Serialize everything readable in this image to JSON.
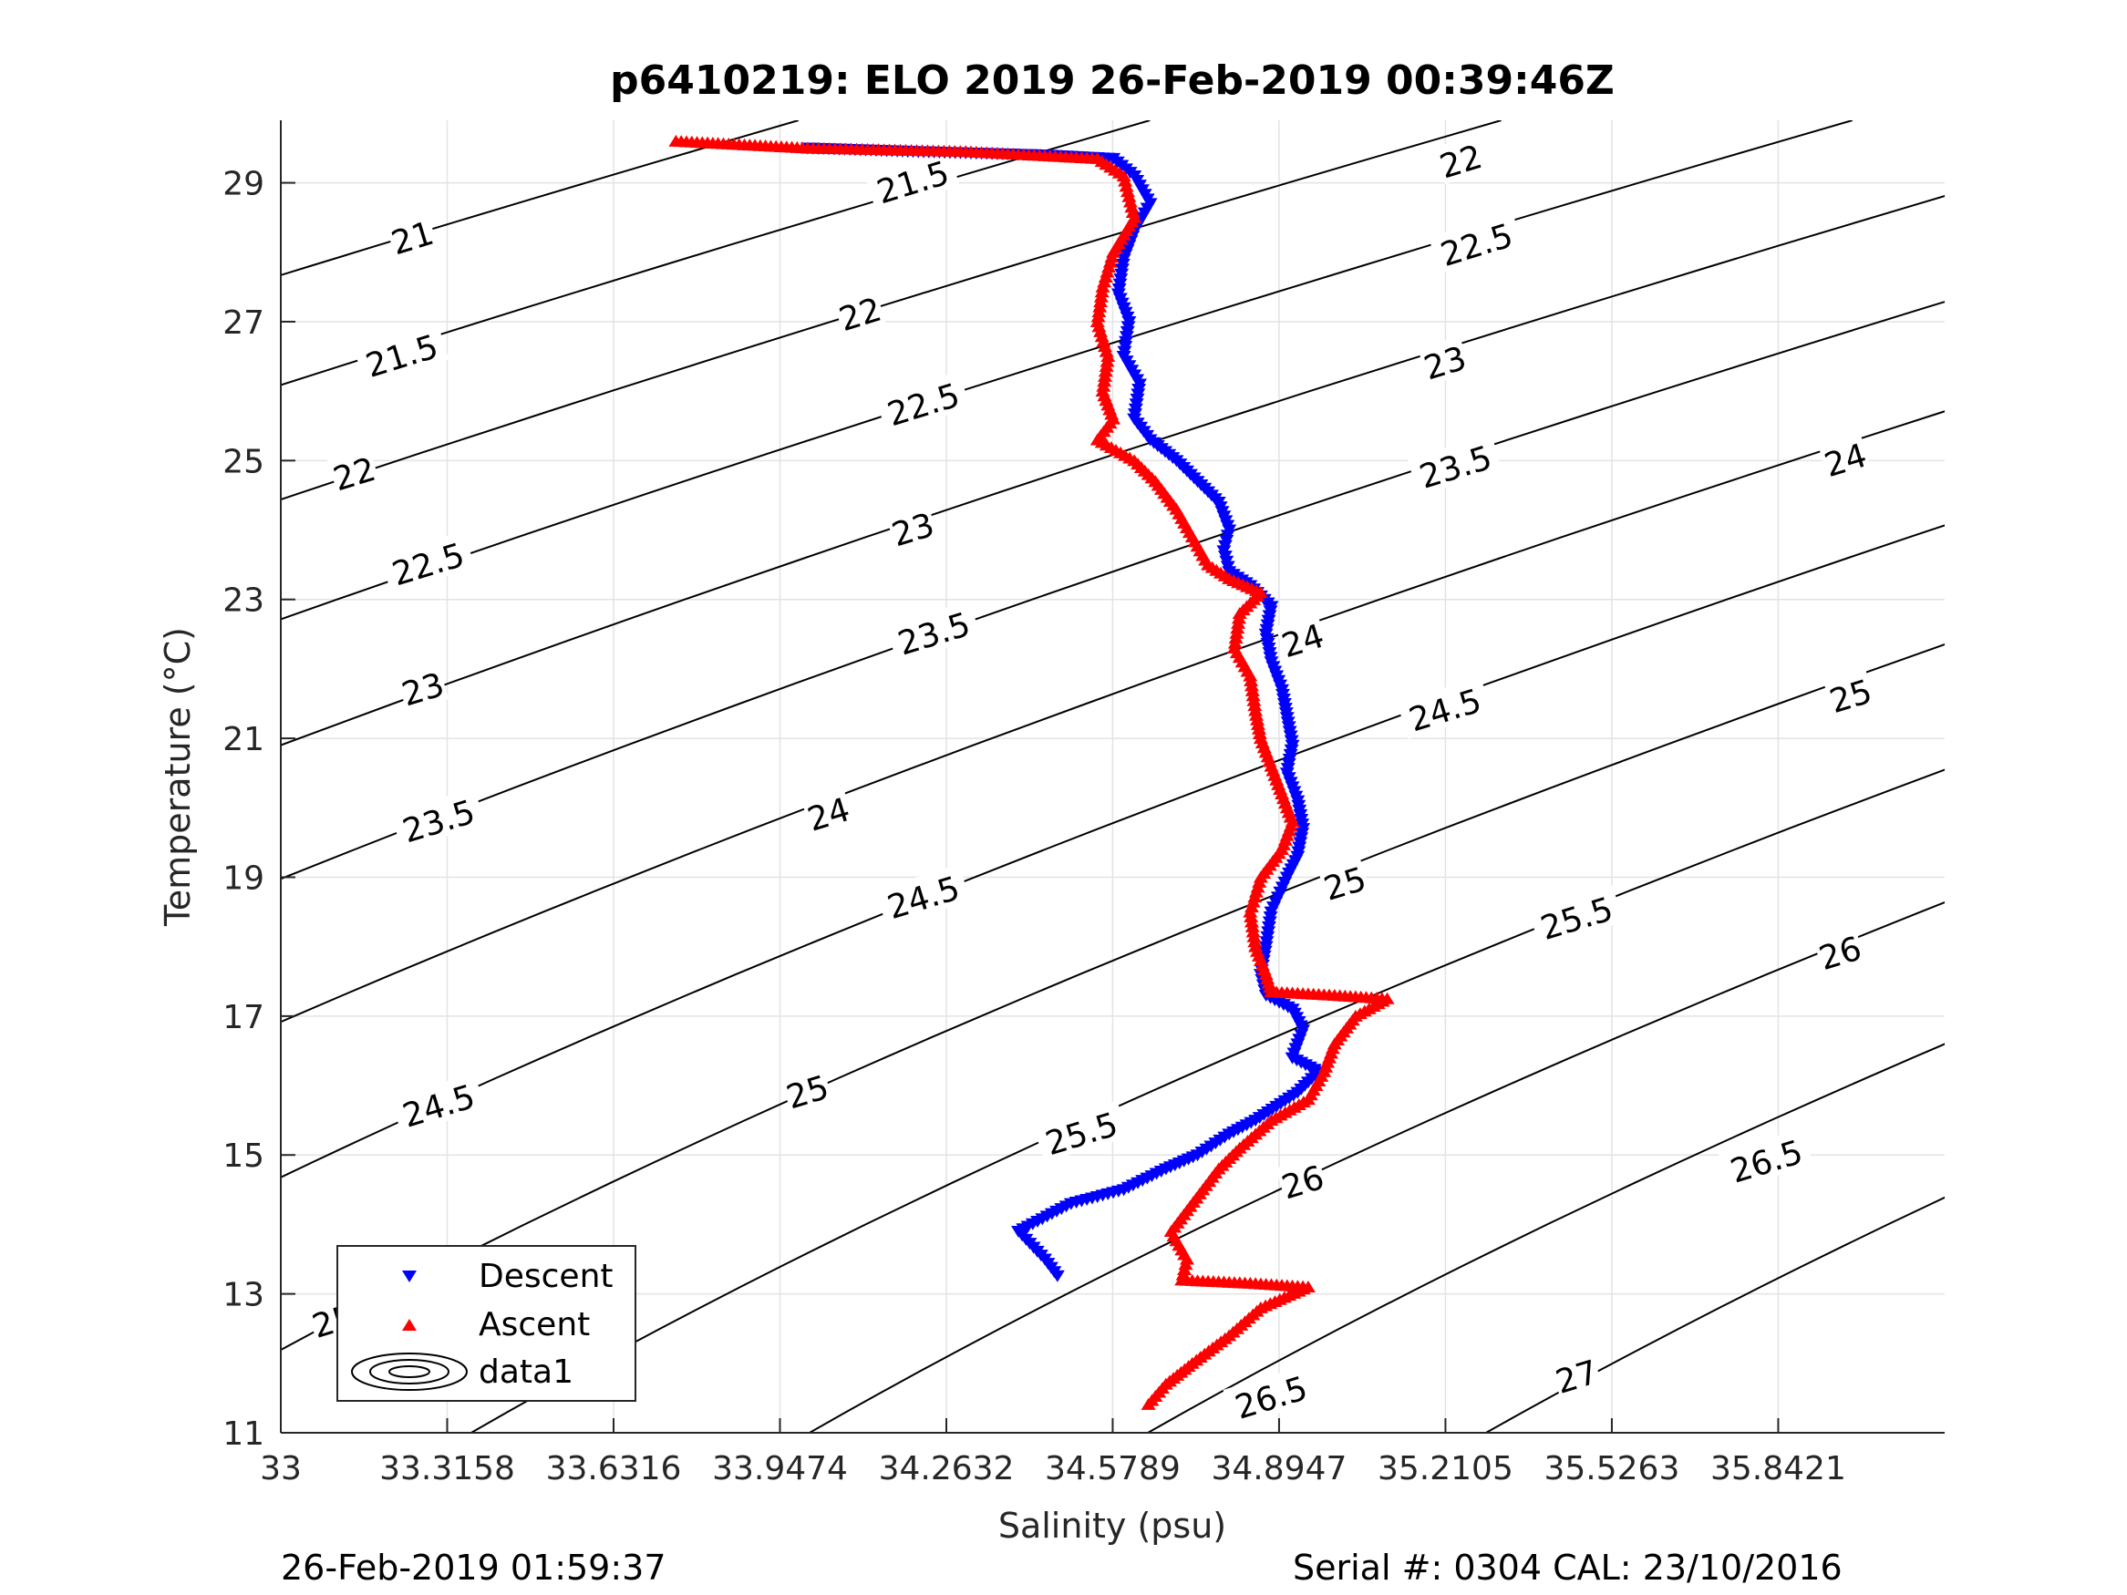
{
  "chart_data": {
    "type": "scatter",
    "title": "p6410219: ELO 2019 26-Feb-2019 00:39:46Z",
    "xlabel": "Salinity (psu)",
    "ylabel": "Temperature (°C)",
    "xlim": [
      33,
      36.158
    ],
    "ylim": [
      11,
      29.9
    ],
    "x_ticks": [
      33,
      33.3158,
      33.6316,
      33.9474,
      34.2632,
      34.5789,
      34.8947,
      35.2105,
      35.5263,
      35.8421
    ],
    "x_tick_labels": [
      "33",
      "33.3158",
      "33.6316",
      "33.9474",
      "34.2632",
      "34.5789",
      "34.8947",
      "35.2105",
      "35.5263",
      "35.8421"
    ],
    "y_ticks": [
      11,
      13,
      15,
      17,
      19,
      21,
      23,
      25,
      27,
      29
    ],
    "y_tick_labels": [
      "11",
      "13",
      "15",
      "17",
      "19",
      "21",
      "23",
      "25",
      "27",
      "29"
    ],
    "grid": true,
    "legend_position": "bottom-left",
    "legend": [
      "Descent",
      "Ascent",
      "data1"
    ],
    "isopycnals": {
      "levels": [
        21,
        21.5,
        22,
        22.5,
        23,
        23.5,
        24,
        24.5,
        25,
        25.5,
        26,
        26.5,
        27
      ],
      "labels": [
        {
          "text": "21",
          "s": 33.25,
          "t": 28.2
        },
        {
          "text": "21.5",
          "s": 33.23,
          "t": 26.5
        },
        {
          "text": "21.5",
          "s": 34.2,
          "t": 29.0
        },
        {
          "text": "22",
          "s": 33.14,
          "t": 24.8
        },
        {
          "text": "22",
          "s": 34.1,
          "t": 27.1
        },
        {
          "text": "22",
          "s": 35.24,
          "t": 29.3
        },
        {
          "text": "22.5",
          "s": 33.28,
          "t": 23.5
        },
        {
          "text": "22.5",
          "s": 34.22,
          "t": 25.8
        },
        {
          "text": "22.5",
          "s": 35.27,
          "t": 28.1
        },
        {
          "text": "23",
          "s": 33.27,
          "t": 21.7
        },
        {
          "text": "23",
          "s": 34.2,
          "t": 24.0
        },
        {
          "text": "23",
          "s": 35.21,
          "t": 26.4
        },
        {
          "text": "23.5",
          "s": 33.3,
          "t": 19.8
        },
        {
          "text": "23.5",
          "s": 34.24,
          "t": 22.5
        },
        {
          "text": "23.5",
          "s": 35.23,
          "t": 24.9
        },
        {
          "text": "24",
          "s": 34.04,
          "t": 19.9
        },
        {
          "text": "24",
          "s": 34.94,
          "t": 22.4
        },
        {
          "text": "24",
          "s": 35.97,
          "t": 25.0
        },
        {
          "text": "24.5",
          "s": 33.3,
          "t": 15.7
        },
        {
          "text": "24.5",
          "s": 34.22,
          "t": 18.7
        },
        {
          "text": "24.5",
          "s": 35.21,
          "t": 21.4
        },
        {
          "text": "25",
          "s": 33.1,
          "t": 12.6
        },
        {
          "text": "25",
          "s": 34.0,
          "t": 15.9
        },
        {
          "text": "25",
          "s": 35.02,
          "t": 18.9
        },
        {
          "text": "25",
          "s": 35.98,
          "t": 21.6
        },
        {
          "text": "25.5",
          "s": 33.6,
          "t": 11.9
        },
        {
          "text": "25.5",
          "s": 34.52,
          "t": 15.3
        },
        {
          "text": "25.5",
          "s": 35.46,
          "t": 18.4
        },
        {
          "text": "26",
          "s": 34.94,
          "t": 14.6
        },
        {
          "text": "26",
          "s": 35.96,
          "t": 17.9
        },
        {
          "text": "26.5",
          "s": 34.88,
          "t": 11.5
        },
        {
          "text": "26.5",
          "s": 35.82,
          "t": 14.9
        },
        {
          "text": "27",
          "s": 35.46,
          "t": 11.8
        }
      ]
    },
    "series": [
      {
        "name": "Descent",
        "color": "#0000ff",
        "marker": "triangle-down",
        "path": [
          [
            34.0,
            29.5
          ],
          [
            34.2,
            29.45
          ],
          [
            34.45,
            29.4
          ],
          [
            34.58,
            29.35
          ],
          [
            34.62,
            29.1
          ],
          [
            34.65,
            28.7
          ],
          [
            34.62,
            28.3
          ],
          [
            34.6,
            27.9
          ],
          [
            34.59,
            27.4
          ],
          [
            34.61,
            27.0
          ],
          [
            34.6,
            26.5
          ],
          [
            34.63,
            26.1
          ],
          [
            34.62,
            25.6
          ],
          [
            34.65,
            25.3
          ],
          [
            34.7,
            25.0
          ],
          [
            34.74,
            24.7
          ],
          [
            34.78,
            24.4
          ],
          [
            34.8,
            24.0
          ],
          [
            34.79,
            23.7
          ],
          [
            34.8,
            23.4
          ],
          [
            34.84,
            23.2
          ],
          [
            34.88,
            22.9
          ],
          [
            34.87,
            22.5
          ],
          [
            34.88,
            22.1
          ],
          [
            34.9,
            21.7
          ],
          [
            34.91,
            21.3
          ],
          [
            34.92,
            20.9
          ],
          [
            34.91,
            20.5
          ],
          [
            34.93,
            20.1
          ],
          [
            34.94,
            19.7
          ],
          [
            34.93,
            19.3
          ],
          [
            34.91,
            19.0
          ],
          [
            34.88,
            18.5
          ],
          [
            34.87,
            18.0
          ],
          [
            34.86,
            17.6
          ],
          [
            34.87,
            17.3
          ],
          [
            34.92,
            17.1
          ],
          [
            34.94,
            16.8
          ],
          [
            34.92,
            16.4
          ],
          [
            34.97,
            16.2
          ],
          [
            34.93,
            15.9
          ],
          [
            34.85,
            15.5
          ],
          [
            34.8,
            15.3
          ],
          [
            34.74,
            15.0
          ],
          [
            34.68,
            14.8
          ],
          [
            34.6,
            14.5
          ],
          [
            34.5,
            14.3
          ],
          [
            34.4,
            13.9
          ],
          [
            34.45,
            13.5
          ],
          [
            34.48,
            13.2
          ]
        ]
      },
      {
        "name": "Ascent",
        "color": "#ff0000",
        "marker": "triangle-up",
        "path": [
          [
            33.75,
            29.6
          ],
          [
            34.0,
            29.5
          ],
          [
            34.3,
            29.45
          ],
          [
            34.55,
            29.35
          ],
          [
            34.6,
            29.1
          ],
          [
            34.62,
            28.5
          ],
          [
            34.58,
            28.0
          ],
          [
            34.56,
            27.5
          ],
          [
            34.55,
            27.0
          ],
          [
            34.57,
            26.5
          ],
          [
            34.56,
            26.0
          ],
          [
            34.58,
            25.6
          ],
          [
            34.55,
            25.3
          ],
          [
            34.62,
            25.0
          ],
          [
            34.66,
            24.7
          ],
          [
            34.7,
            24.3
          ],
          [
            34.73,
            23.9
          ],
          [
            34.76,
            23.5
          ],
          [
            34.8,
            23.3
          ],
          [
            34.86,
            23.1
          ],
          [
            34.82,
            22.8
          ],
          [
            34.81,
            22.3
          ],
          [
            34.84,
            21.9
          ],
          [
            34.85,
            21.4
          ],
          [
            34.86,
            21.0
          ],
          [
            34.88,
            20.6
          ],
          [
            34.9,
            20.2
          ],
          [
            34.92,
            19.8
          ],
          [
            34.9,
            19.4
          ],
          [
            34.86,
            19.0
          ],
          [
            34.84,
            18.5
          ],
          [
            34.85,
            18.0
          ],
          [
            34.87,
            17.6
          ],
          [
            34.88,
            17.35
          ],
          [
            35.0,
            17.3
          ],
          [
            35.1,
            17.25
          ],
          [
            35.04,
            17.0
          ],
          [
            35.0,
            16.6
          ],
          [
            34.98,
            16.2
          ],
          [
            34.95,
            15.8
          ],
          [
            34.88,
            15.5
          ],
          [
            34.82,
            15.1
          ],
          [
            34.78,
            14.8
          ],
          [
            34.75,
            14.5
          ],
          [
            34.72,
            14.2
          ],
          [
            34.69,
            13.9
          ],
          [
            34.72,
            13.5
          ],
          [
            34.71,
            13.2
          ],
          [
            34.85,
            13.15
          ],
          [
            34.95,
            13.1
          ],
          [
            34.86,
            12.8
          ],
          [
            34.8,
            12.4
          ],
          [
            34.73,
            12.0
          ],
          [
            34.68,
            11.7
          ],
          [
            34.64,
            11.35
          ]
        ]
      }
    ]
  },
  "footer": {
    "timestamp": "26-Feb-2019 01:59:37",
    "serial": "Serial #: 0304  CAL: 23/10/2016"
  }
}
